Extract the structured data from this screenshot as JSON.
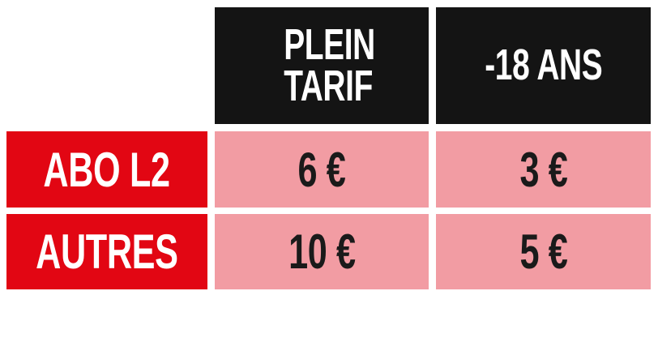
{
  "colors": {
    "header": "#141414",
    "row_label": "#e20613",
    "price_cell": "#f29ca3"
  },
  "columns": [
    "PLEIN TARIF",
    "-18 ANS"
  ],
  "rows": [
    {
      "label": "ABO L2",
      "prices": [
        "6 €",
        "3 €"
      ]
    },
    {
      "label": "AUTRES",
      "prices": [
        "10 €",
        "5 €"
      ]
    }
  ]
}
